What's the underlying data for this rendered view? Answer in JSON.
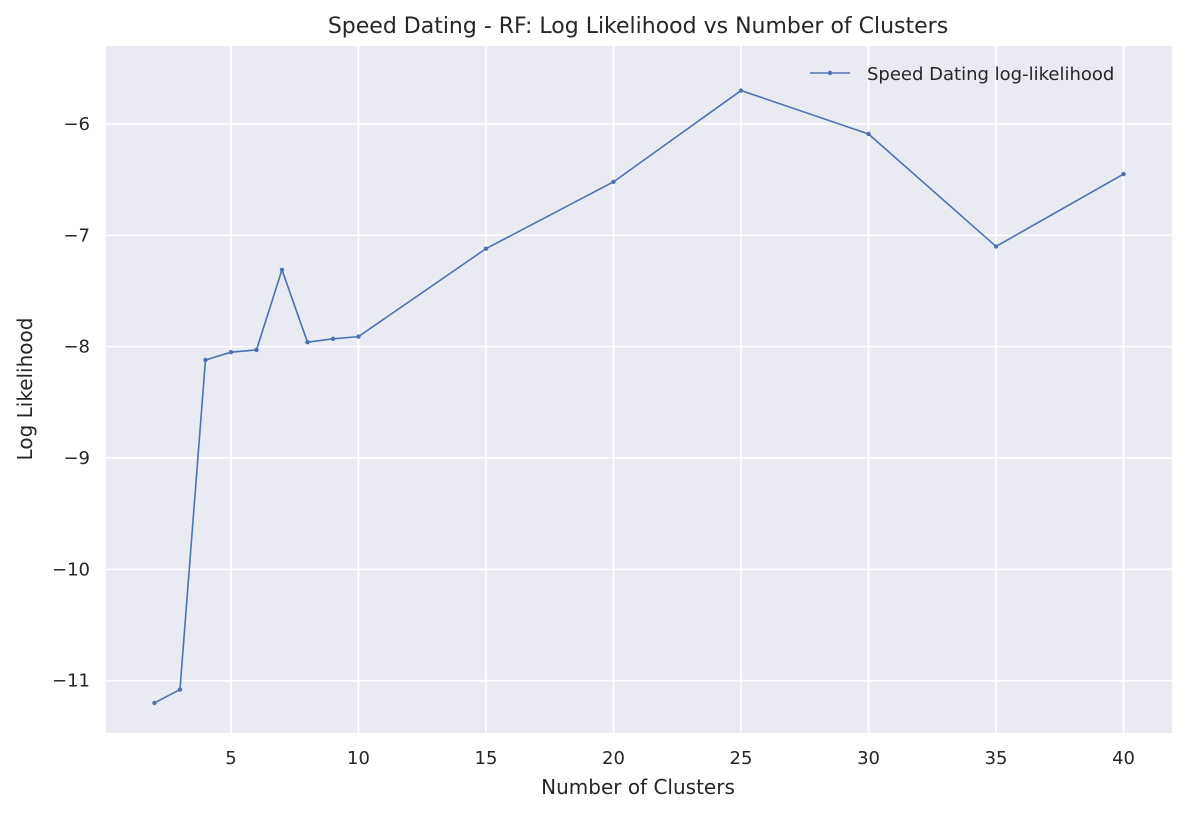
{
  "colors": {
    "plot_background": "#EAEAF2",
    "grid": "#FFFFFF",
    "series_line": "#4C72B0",
    "text": "#262626"
  },
  "chart_data": {
    "type": "line",
    "title": "Speed Dating - RF: Log Likelihood vs Number of Clusters",
    "xlabel": "Number of Clusters",
    "ylabel": "Log Likelihood",
    "xlim": [
      0.1,
      41.9
    ],
    "ylim": [
      -11.47,
      -5.3
    ],
    "x_ticks": [
      5,
      10,
      15,
      20,
      25,
      30,
      35,
      40
    ],
    "x_tick_labels": [
      "5",
      "10",
      "15",
      "20",
      "25",
      "30",
      "35",
      "40"
    ],
    "y_ticks": [
      -11,
      -10,
      -9,
      -8,
      -7,
      -6
    ],
    "y_tick_labels": [
      "−11",
      "−10",
      "−9",
      "−8",
      "−7",
      "−6"
    ],
    "grid": true,
    "legend_position": "top-right",
    "series": [
      {
        "name": "Speed Dating log-likelihood",
        "x": [
          2,
          3,
          4,
          5,
          6,
          7,
          8,
          9,
          10,
          15,
          20,
          25,
          30,
          35,
          40
        ],
        "y": [
          -11.2,
          -11.08,
          -8.12,
          -8.05,
          -8.03,
          -7.31,
          -7.96,
          -7.93,
          -7.91,
          -7.12,
          -6.52,
          -5.7,
          -6.09,
          -7.1,
          -6.45
        ]
      }
    ]
  }
}
